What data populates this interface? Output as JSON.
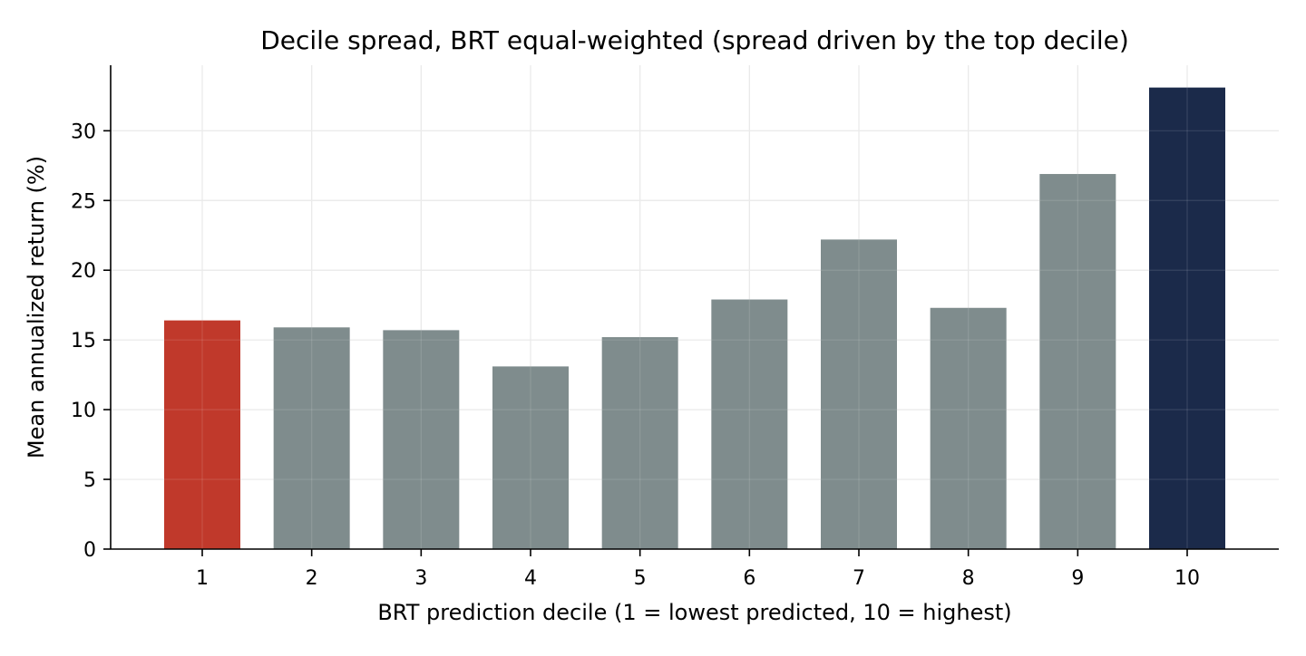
{
  "chart_data": {
    "type": "bar",
    "title": "Decile spread, BRT equal-weighted (spread driven by the top decile)",
    "xlabel": "BRT prediction decile (1 = lowest predicted, 10 = highest)",
    "ylabel": "Mean annualized return (%)",
    "categories": [
      "1",
      "2",
      "3",
      "4",
      "5",
      "6",
      "7",
      "8",
      "9",
      "10"
    ],
    "values": [
      16.4,
      15.9,
      15.7,
      13.1,
      15.2,
      17.9,
      22.2,
      17.3,
      26.9,
      33.1
    ],
    "ylim": [
      0,
      34.7
    ],
    "yticks": [
      0,
      5,
      10,
      15,
      20,
      25,
      30
    ],
    "grid": true,
    "colors": {
      "lowest": "#c0392b",
      "middle": "#7f8c8d",
      "highest": "#1b2a4a"
    }
  }
}
